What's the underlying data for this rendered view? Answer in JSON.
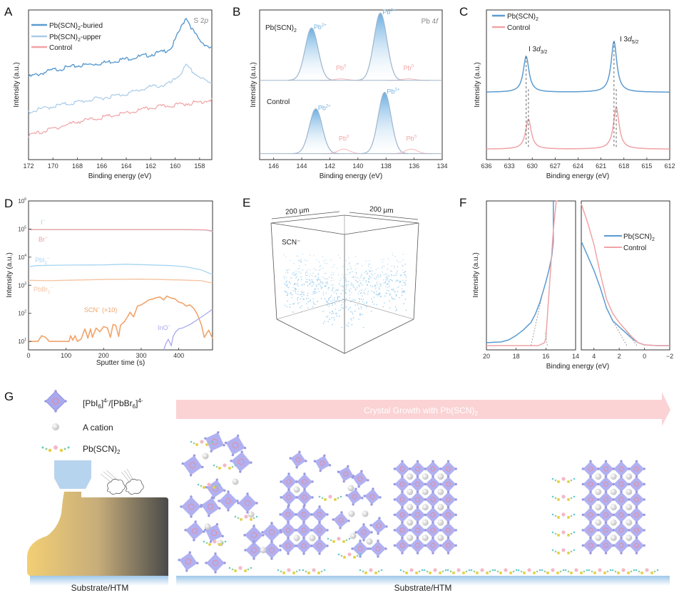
{
  "panels": {
    "A": {
      "letter": "A"
    },
    "B": {
      "letter": "B"
    },
    "C": {
      "letter": "C"
    },
    "D": {
      "letter": "D"
    },
    "E": {
      "letter": "E",
      "dim1": "200 µm",
      "dim2": "200 µm",
      "label": "SCN⁻",
      "dot_color": "#8ec7ea"
    },
    "F": {
      "letter": "F"
    },
    "G": {
      "letter": "G",
      "legend": [
        {
          "label": "[PbI6]4-/[PbBr6]4-",
          "icon": "octahedron-icon"
        },
        {
          "label": "A cation",
          "icon": "sphere-icon"
        },
        {
          "label": "Pb(SCN)2",
          "icon": "molecule-chain-icon"
        }
      ],
      "arrow_label": "Crystal Growth with Pb(SCN)2",
      "substrate_left": "Substrate/HTM",
      "substrate_right": "Substrate/HTM",
      "colors": {
        "octahedron": "#a9a9ef",
        "arrow": "#fbd3d5",
        "substrate": "#bcd8ee",
        "cation": "#dcdcdc",
        "nozzle": "#b7d4ee"
      }
    }
  },
  "chart_data": [
    {
      "id": "A",
      "type": "line",
      "title": "",
      "annotation": "S 2p",
      "xlabel": "Binding energy (eV)",
      "ylabel": "Intensity (a.u.)",
      "xlim": [
        172,
        157
      ],
      "x_ticks": [
        172,
        170,
        168,
        166,
        164,
        162,
        160,
        158
      ],
      "legend_position": "top-left",
      "series": [
        {
          "name": "Pb(SCN)2-buried",
          "color": "#5b9bd0",
          "x": [
            172,
            170,
            168,
            166,
            164,
            162,
            161,
            160.3,
            159.6,
            159.1,
            158.6,
            158,
            157.3,
            157
          ],
          "y": [
            0.52,
            0.57,
            0.6,
            0.62,
            0.65,
            0.68,
            0.7,
            0.73,
            0.86,
            0.95,
            0.86,
            0.78,
            0.74,
            0.72
          ]
        },
        {
          "name": "Pb(SCN)2-upper",
          "color": "#a9cbe8",
          "x": [
            172,
            170,
            168,
            166,
            164,
            162,
            161,
            160.3,
            159.6,
            159.1,
            158.6,
            158,
            157.3,
            157
          ],
          "y": [
            0.27,
            0.31,
            0.34,
            0.37,
            0.4,
            0.45,
            0.46,
            0.48,
            0.54,
            0.6,
            0.56,
            0.52,
            0.48,
            0.48
          ]
        },
        {
          "name": "Control",
          "color": "#f0a3a6",
          "x": [
            172,
            170,
            168,
            166,
            164,
            162,
            160,
            158,
            157
          ],
          "y": [
            0.1,
            0.15,
            0.2,
            0.23,
            0.26,
            0.3,
            0.32,
            0.34,
            0.36
          ]
        }
      ]
    },
    {
      "id": "B",
      "type": "line",
      "annotation": "Pb 4f",
      "xlabel": "Binding energy (eV)",
      "ylabel": "Intensity (a.u.)",
      "xlim": [
        147,
        134
      ],
      "x_ticks": [
        146,
        144,
        142,
        140,
        138,
        136,
        134
      ],
      "series": [
        {
          "name": "Pb(SCN)2",
          "color": "#9fb5cc",
          "baseline": 0.53,
          "peaks": [
            {
              "center": 143.3,
              "height": 0.35,
              "width": 0.55,
              "label": "Pb2+"
            },
            {
              "center": 138.4,
              "height": 0.45,
              "width": 0.55,
              "label": "Pb2+"
            },
            {
              "center": 141.2,
              "height": 0.01,
              "width": 0.5,
              "label": "Pb0"
            },
            {
              "center": 136.4,
              "height": 0.01,
              "width": 0.5,
              "label": "Pb0"
            }
          ]
        },
        {
          "name": "Control",
          "color": "#9fb5cc",
          "baseline": 0.04,
          "peaks": [
            {
              "center": 143.0,
              "height": 0.3,
              "width": 0.55,
              "label": "Pb2+"
            },
            {
              "center": 138.1,
              "height": 0.41,
              "width": 0.55,
              "label": "Pb2+"
            },
            {
              "center": 141.0,
              "height": 0.03,
              "width": 0.5,
              "label": "Pb0"
            },
            {
              "center": 136.2,
              "height": 0.03,
              "width": 0.5,
              "label": "Pb0"
            }
          ]
        }
      ],
      "labels": {
        "series1": "Pb(SCN)2",
        "series2": "Control",
        "pb2": "Pb2+",
        "pb0": "Pb0"
      }
    },
    {
      "id": "C",
      "type": "line",
      "xlabel": "Binding energy (eV)",
      "ylabel": "Intensity (a.u.)",
      "xlim": [
        636,
        612
      ],
      "x_ticks": [
        636,
        633,
        630,
        627,
        624,
        621,
        618,
        615,
        612
      ],
      "legend_position": "top-left",
      "series": [
        {
          "name": "Pb(SCN)2",
          "color": "#5b9bd0",
          "baseline": 0.45,
          "peaks": [
            {
              "center": 630.8,
              "height": 0.24,
              "width": 0.45
            },
            {
              "center": 619.3,
              "height": 0.34,
              "width": 0.45
            }
          ]
        },
        {
          "name": "Control",
          "color": "#f0a3a6",
          "baseline": 0.07,
          "peaks": [
            {
              "center": 630.5,
              "height": 0.2,
              "width": 0.45
            },
            {
              "center": 619.0,
              "height": 0.28,
              "width": 0.45
            }
          ]
        }
      ],
      "annotations": [
        "I 3d3/2",
        "I 3d5/2"
      ]
    },
    {
      "id": "D",
      "type": "line",
      "yscale": "log",
      "xlabel": "Sputter time (s)",
      "ylabel": "Intensity (a.u.)",
      "xlim": [
        0,
        490
      ],
      "ylim": [
        5,
        1000000
      ],
      "x_ticks": [
        0,
        100,
        200,
        300,
        400
      ],
      "y_ticks": [
        "10^1",
        "10^2",
        "10^3",
        "10^4",
        "10^5",
        "10^6"
      ],
      "series": [
        {
          "name": "I⁻",
          "color": "#a7cdea",
          "x": [
            0,
            100,
            200,
            300,
            400,
            470,
            485,
            490
          ],
          "y": [
            95000,
            95000,
            95000,
            95000,
            95000,
            93000,
            85000,
            80000
          ]
        },
        {
          "name": "Br⁻",
          "color": "#ef9fa2",
          "x": [
            0,
            100,
            200,
            300,
            400,
            470,
            485,
            490
          ],
          "y": [
            96000,
            96000,
            96000,
            96000,
            96000,
            94000,
            88000,
            82000
          ]
        },
        {
          "name": "PbI2⁻",
          "color": "#a7d4f2",
          "x": [
            0,
            20,
            100,
            200,
            260,
            320,
            380,
            420,
            460,
            490
          ],
          "y": [
            4500,
            5000,
            5200,
            5300,
            5600,
            5300,
            5000,
            4500,
            3500,
            2400
          ]
        },
        {
          "name": "PbBr2⁻",
          "color": "#f5c2a1",
          "x": [
            0,
            50,
            100,
            200,
            300,
            400,
            460,
            490
          ],
          "y": [
            1500,
            1450,
            1500,
            1600,
            1650,
            1550,
            1450,
            1200
          ]
        },
        {
          "name": "SCN⁻ (×10)",
          "color": "#f1a36b",
          "x": [
            0,
            25,
            35,
            45,
            55,
            100,
            108,
            112,
            118,
            124,
            130,
            140,
            150,
            158,
            165,
            170,
            180,
            190,
            200,
            210,
            218,
            225,
            232,
            240,
            245,
            255,
            265,
            270,
            280,
            290,
            300,
            310,
            320,
            330,
            340,
            350,
            360,
            368,
            380,
            390,
            400,
            410,
            420,
            430,
            440,
            450,
            460,
            468,
            475,
            480,
            490
          ],
          "y": [
            10,
            10,
            16,
            14,
            10,
            10,
            10,
            16,
            11,
            16,
            10,
            12,
            28,
            13,
            28,
            14,
            30,
            22,
            34,
            30,
            14,
            40,
            38,
            15,
            38,
            50,
            80,
            110,
            75,
            180,
            200,
            240,
            300,
            320,
            360,
            380,
            300,
            410,
            350,
            330,
            250,
            230,
            180,
            200,
            150,
            90,
            40,
            14,
            20,
            25,
            13
          ]
        },
        {
          "name": "InO⁻",
          "color": "#a9a9ef",
          "x": [
            360,
            365,
            372,
            380,
            385,
            392,
            400,
            410,
            430,
            450,
            470,
            490
          ],
          "y": [
            5,
            8,
            12,
            7,
            15,
            22,
            28,
            30,
            40,
            60,
            90,
            140
          ]
        }
      ]
    },
    {
      "id": "F",
      "type": "line",
      "xlabel": "Binding energy (eV)",
      "ylabel": "Intensity (a.u.)",
      "subplots": [
        {
          "xlim": [
            20,
            14
          ],
          "x_ticks": [
            20,
            18,
            16,
            14
          ]
        },
        {
          "xlim": [
            5,
            -2
          ],
          "x_ticks": [
            4,
            2,
            0,
            -2
          ]
        }
      ],
      "legend_position": "top-right",
      "series": [
        {
          "name": "Pb(SCN)2",
          "color": "#5b9bd0",
          "cutoff": {
            "x": [
              20,
              19,
              18.5,
              18,
              17.5,
              17,
              16.7,
              16.4,
              16.2,
              16,
              15.8,
              15.6,
              15.5,
              15.5
            ],
            "y": [
              0.02,
              0.025,
              0.04,
              0.07,
              0.11,
              0.16,
              0.22,
              0.3,
              0.37,
              0.44,
              0.52,
              0.62,
              0.72,
              1.0
            ]
          },
          "valence": {
            "x": [
              5,
              4.5,
              4,
              3.5,
              3,
              2.5,
              2,
              1.5,
              1,
              0.5,
              0,
              -1,
              -2
            ],
            "y": [
              0.72,
              0.62,
              0.52,
              0.4,
              0.26,
              0.17,
              0.13,
              0.09,
              0.05,
              0.02,
              0.005,
              0.0,
              0.0
            ]
          }
        },
        {
          "name": "Control",
          "color": "#f0a3a6",
          "cutoff": {
            "x": [
              20,
              18,
              17,
              16.5,
              16.1,
              16.0,
              15.9,
              15.7,
              15.5,
              15.3,
              15.2
            ],
            "y": [
              0.0,
              0.0,
              0.0,
              0.0,
              0.02,
              0.05,
              0.2,
              0.5,
              0.8,
              1.0,
              1.05
            ]
          },
          "valence": {
            "x": [
              5,
              4.5,
              4,
              3.5,
              3,
              2.5,
              2,
              1.5,
              1,
              0.5,
              0,
              -1,
              -2
            ],
            "y": [
              0.98,
              0.85,
              0.7,
              0.5,
              0.32,
              0.22,
              0.16,
              0.11,
              0.06,
              0.02,
              0.005,
              0.0,
              0.0
            ]
          }
        }
      ],
      "extrapolations": [
        {
          "panel": "cutoff",
          "series": "Pb(SCN)2",
          "x0": 17.0
        },
        {
          "panel": "cutoff",
          "series": "Control",
          "x0": 15.9
        },
        {
          "panel": "valence",
          "series": "Pb(SCN)2",
          "x0": 1.4
        },
        {
          "panel": "valence",
          "series": "Control",
          "x0": 0.6
        }
      ]
    }
  ]
}
